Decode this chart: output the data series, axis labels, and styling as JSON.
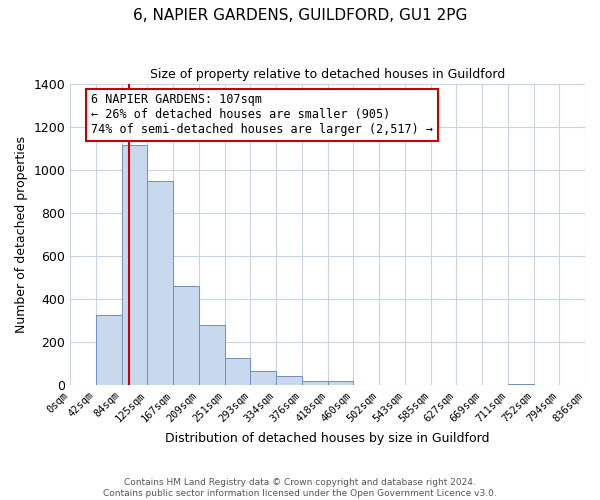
{
  "title": "6, NAPIER GARDENS, GUILDFORD, GU1 2PG",
  "subtitle": "Size of property relative to detached houses in Guildford",
  "xlabel": "Distribution of detached houses by size in Guildford",
  "ylabel": "Number of detached properties",
  "bar_labels": [
    "0sqm",
    "42sqm",
    "84sqm",
    "125sqm",
    "167sqm",
    "209sqm",
    "251sqm",
    "293sqm",
    "334sqm",
    "376sqm",
    "418sqm",
    "460sqm",
    "502sqm",
    "543sqm",
    "585sqm",
    "627sqm",
    "669sqm",
    "711sqm",
    "752sqm",
    "794sqm",
    "836sqm"
  ],
  "bar_values": [
    0,
    325,
    1120,
    950,
    460,
    280,
    125,
    68,
    43,
    20,
    20,
    0,
    0,
    0,
    0,
    0,
    0,
    5,
    0,
    0,
    0
  ],
  "bar_color": "#c8d8ee",
  "bar_edge_color": "#7090b8",
  "vline_color": "#cc0000",
  "vline_x": 2.27,
  "ylim": [
    0,
    1400
  ],
  "yticks": [
    0,
    200,
    400,
    600,
    800,
    1000,
    1200,
    1400
  ],
  "annotation_title": "6 NAPIER GARDENS: 107sqm",
  "annotation_line1": "← 26% of detached houses are smaller (905)",
  "annotation_line2": "74% of semi-detached houses are larger (2,517) →",
  "annotation_box_color": "#ffffff",
  "annotation_box_edge": "#cc0000",
  "footer1": "Contains HM Land Registry data © Crown copyright and database right 2024.",
  "footer2": "Contains public sector information licensed under the Open Government Licence v3.0.",
  "background_color": "#ffffff",
  "grid_color": "#c8d4e0"
}
